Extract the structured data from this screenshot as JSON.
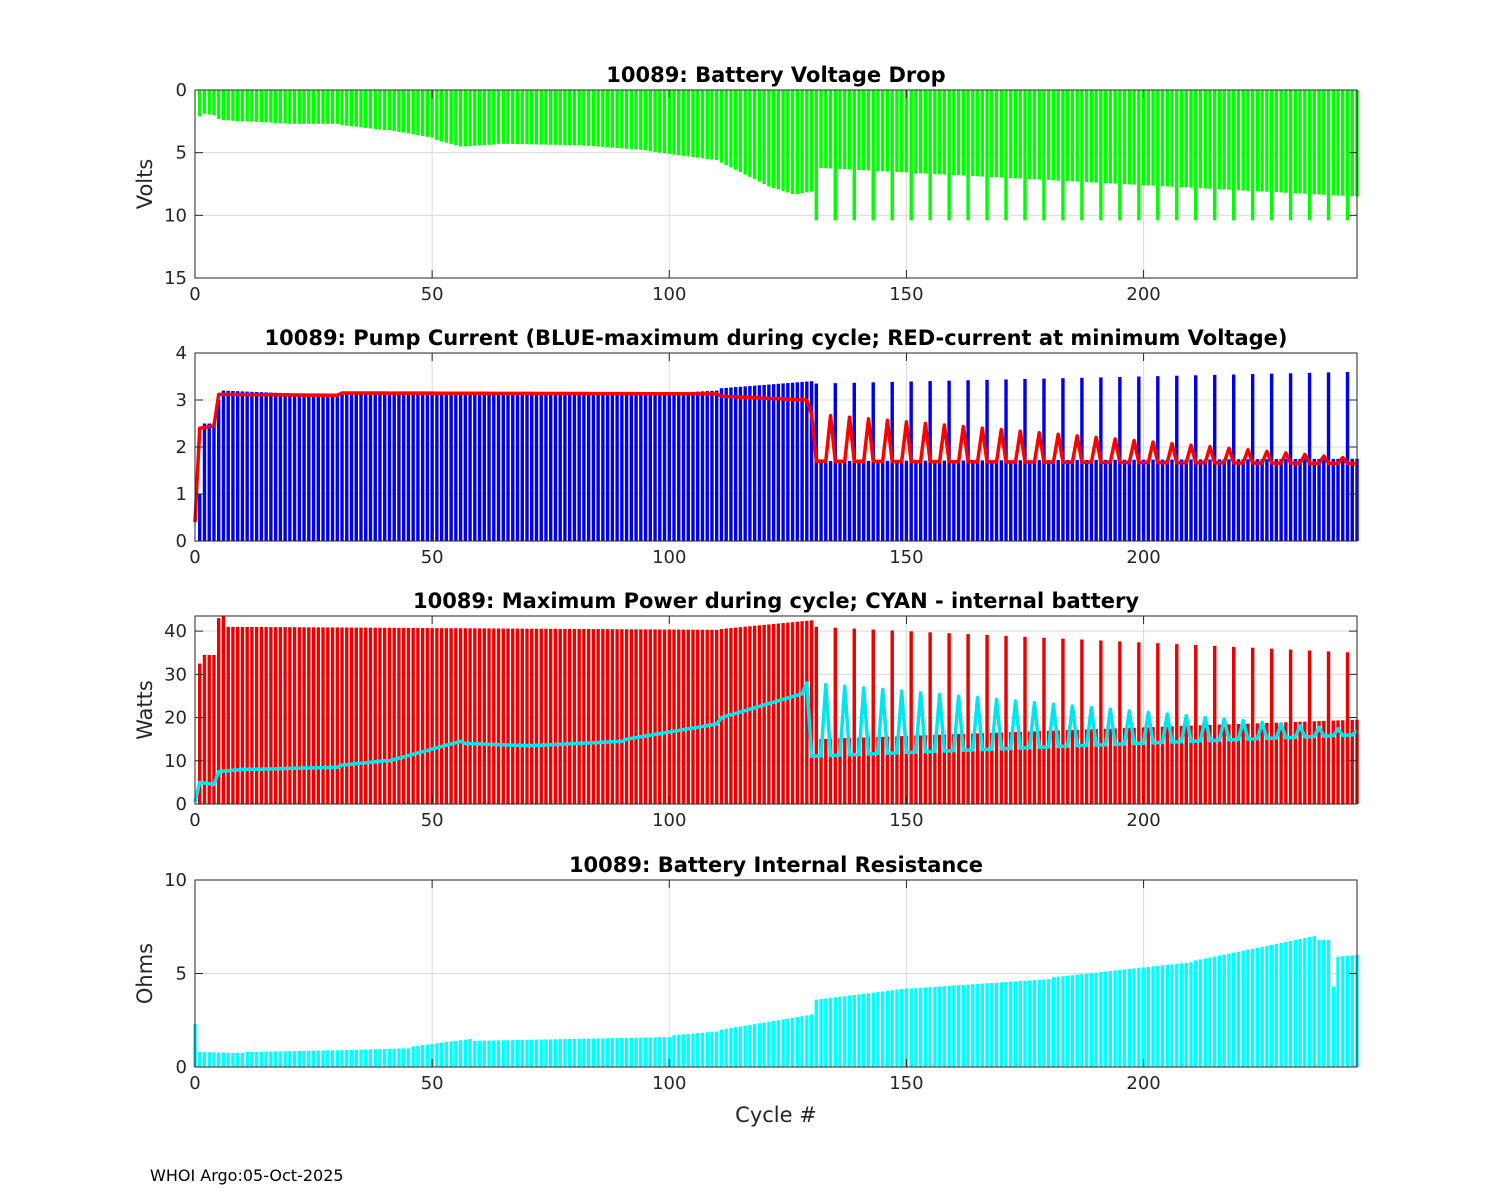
{
  "footer": "WHOI Argo:05-Oct-2025",
  "chart_data": [
    {
      "type": "bar",
      "title": "10089: Battery Voltage Drop",
      "xlabel": "",
      "ylabel": "Volts",
      "xlim": [
        0,
        245
      ],
      "ylim": [
        0,
        15
      ],
      "yreversed": true,
      "xticks": [
        0,
        50,
        100,
        150,
        200
      ],
      "yticks": [
        0,
        5,
        10,
        15
      ],
      "grid": true,
      "colors": {
        "bars": "#00ff00"
      },
      "bar_segments": [
        {
          "from": 1,
          "to": 1,
          "y0": 2.1,
          "y1": 2.1
        },
        {
          "from": 2,
          "to": 4,
          "y0": 1.9,
          "y1": 2.0
        },
        {
          "from": 5,
          "to": 5,
          "y0": 2.3,
          "y1": 2.3
        },
        {
          "from": 6,
          "to": 10,
          "y0": 2.4,
          "y1": 2.5
        },
        {
          "from": 11,
          "to": 20,
          "y0": 2.5,
          "y1": 2.7
        },
        {
          "from": 21,
          "to": 30,
          "y0": 2.7,
          "y1": 2.7
        },
        {
          "from": 31,
          "to": 40,
          "y0": 2.8,
          "y1": 3.2
        },
        {
          "from": 41,
          "to": 50,
          "y0": 3.2,
          "y1": 3.8
        },
        {
          "from": 51,
          "to": 56,
          "y0": 4.0,
          "y1": 4.5
        },
        {
          "from": 57,
          "to": 65,
          "y0": 4.5,
          "y1": 4.3
        },
        {
          "from": 66,
          "to": 80,
          "y0": 4.3,
          "y1": 4.4
        },
        {
          "from": 81,
          "to": 95,
          "y0": 4.4,
          "y1": 4.8
        },
        {
          "from": 96,
          "to": 110,
          "y0": 4.9,
          "y1": 5.6
        },
        {
          "from": 111,
          "to": 120,
          "y0": 5.8,
          "y1": 7.5
        },
        {
          "from": 121,
          "to": 126,
          "y0": 7.7,
          "y1": 8.3
        },
        {
          "from": 127,
          "to": 130,
          "y0": 8.3,
          "y1": 8.1
        },
        {
          "from": 131,
          "to": 245,
          "y0": 6.2,
          "y1": 8.5,
          "spike_every": 4,
          "spike_value": 10.4
        }
      ]
    },
    {
      "type": "bar+line",
      "title": "10089: Pump Current (BLUE-maximum during cycle; RED-current at minimum Voltage)",
      "xlabel": "",
      "ylabel": "",
      "xlim": [
        0,
        245
      ],
      "ylim": [
        0,
        4
      ],
      "xticks": [
        0,
        50,
        100,
        150,
        200
      ],
      "yticks": [
        0,
        1,
        2,
        3,
        4
      ],
      "grid": true,
      "colors": {
        "bars": "#0000ee",
        "line": "#ff0000"
      },
      "series": [
        {
          "name": "maximum during cycle",
          "style": "bars",
          "segments": [
            {
              "from": 1,
              "to": 1,
              "y0": 1.0,
              "y1": 1.0
            },
            {
              "from": 2,
              "to": 4,
              "y0": 2.5,
              "y1": 2.5
            },
            {
              "from": 5,
              "to": 5,
              "y0": 3.0,
              "y1": 3.0
            },
            {
              "from": 6,
              "to": 30,
              "y0": 3.2,
              "y1": 3.1
            },
            {
              "from": 31,
              "to": 100,
              "y0": 3.15,
              "y1": 3.15
            },
            {
              "from": 101,
              "to": 110,
              "y0": 3.15,
              "y1": 3.2
            },
            {
              "from": 111,
              "to": 130,
              "y0": 3.25,
              "y1": 3.4
            },
            {
              "from": 131,
              "to": 245,
              "y0": 1.7,
              "y1": 1.75,
              "spike_every": 4,
              "spike_value": 3.35,
              "spike_end_value": 3.6
            }
          ]
        },
        {
          "name": "current at minimum Voltage",
          "style": "line",
          "segments": [
            {
              "from": 0,
              "to": 0,
              "y0": 0.4,
              "y1": 0.4
            },
            {
              "from": 1,
              "to": 4,
              "y0": 2.4,
              "y1": 2.45
            },
            {
              "from": 5,
              "to": 30,
              "y0": 3.12,
              "y1": 3.1
            },
            {
              "from": 31,
              "to": 110,
              "y0": 3.15,
              "y1": 3.13
            },
            {
              "from": 111,
              "to": 129,
              "y0": 3.08,
              "y1": 3.0
            },
            {
              "from": 130,
              "to": 245,
              "y0": 1.7,
              "y1": 1.65,
              "spike_every": 4,
              "spike_value": 2.7,
              "spike_end_value": 1.75
            }
          ]
        }
      ]
    },
    {
      "type": "bar+line",
      "title": "10089: Maximum Power during cycle; CYAN - internal battery",
      "xlabel": "",
      "ylabel": "Watts",
      "xlim": [
        0,
        245
      ],
      "ylim": [
        0,
        43.5
      ],
      "xticks": [
        0,
        50,
        100,
        150,
        200
      ],
      "yticks": [
        0,
        10,
        20,
        30,
        40
      ],
      "grid": true,
      "colors": {
        "bars": "#ee0000",
        "line": "#00e5ee"
      },
      "series": [
        {
          "name": "Maximum Power",
          "style": "bars",
          "segments": [
            {
              "from": 1,
              "to": 1,
              "y0": 32.5,
              "y1": 32.5
            },
            {
              "from": 2,
              "to": 4,
              "y0": 34.5,
              "y1": 34.5
            },
            {
              "from": 5,
              "to": 6,
              "y0": 43,
              "y1": 43.5
            },
            {
              "from": 7,
              "to": 110,
              "y0": 41,
              "y1": 40.3
            },
            {
              "from": 111,
              "to": 130,
              "y0": 40.5,
              "y1": 42.5
            },
            {
              "from": 131,
              "to": 245,
              "y0": 15,
              "y1": 19.5,
              "spike_every": 4,
              "spike_value": 41,
              "spike_end_value": 35
            }
          ]
        },
        {
          "name": "internal battery",
          "style": "line",
          "segments": [
            {
              "from": 0,
              "to": 0,
              "y0": 0.5,
              "y1": 0.5
            },
            {
              "from": 1,
              "to": 4,
              "y0": 5,
              "y1": 4.5
            },
            {
              "from": 5,
              "to": 10,
              "y0": 7.5,
              "y1": 8
            },
            {
              "from": 11,
              "to": 30,
              "y0": 8,
              "y1": 8.5
            },
            {
              "from": 31,
              "to": 40,
              "y0": 9,
              "y1": 10
            },
            {
              "from": 41,
              "to": 56,
              "y0": 10,
              "y1": 14.5
            },
            {
              "from": 57,
              "to": 70,
              "y0": 14,
              "y1": 13.5
            },
            {
              "from": 71,
              "to": 90,
              "y0": 13.5,
              "y1": 14.5
            },
            {
              "from": 91,
              "to": 110,
              "y0": 15,
              "y1": 18.5
            },
            {
              "from": 111,
              "to": 128,
              "y0": 20,
              "y1": 25.5
            },
            {
              "from": 129,
              "to": 245,
              "y0": 11,
              "y1": 16,
              "spike_every": 4,
              "spike_value": 28,
              "spike_end_value": 17
            }
          ]
        }
      ]
    },
    {
      "type": "bar",
      "title": "10089: Battery Internal Resistance",
      "xlabel": "Cycle #",
      "ylabel": "Ohms",
      "xlim": [
        0,
        245
      ],
      "ylim": [
        0,
        10
      ],
      "xticks": [
        0,
        50,
        100,
        150,
        200
      ],
      "yticks": [
        0,
        5,
        10
      ],
      "grid": true,
      "colors": {
        "bars": "#00ffff"
      },
      "bar_segments": [
        {
          "from": 0,
          "to": 0,
          "y0": 2.3,
          "y1": 2.3
        },
        {
          "from": 1,
          "to": 10,
          "y0": 0.8,
          "y1": 0.75
        },
        {
          "from": 11,
          "to": 30,
          "y0": 0.8,
          "y1": 0.9
        },
        {
          "from": 31,
          "to": 45,
          "y0": 0.9,
          "y1": 1.0
        },
        {
          "from": 46,
          "to": 58,
          "y0": 1.1,
          "y1": 1.5
        },
        {
          "from": 59,
          "to": 100,
          "y0": 1.4,
          "y1": 1.6
        },
        {
          "from": 101,
          "to": 110,
          "y0": 1.7,
          "y1": 1.9
        },
        {
          "from": 111,
          "to": 130,
          "y0": 2.0,
          "y1": 2.8
        },
        {
          "from": 131,
          "to": 150,
          "y0": 3.6,
          "y1": 4.2
        },
        {
          "from": 151,
          "to": 180,
          "y0": 4.2,
          "y1": 4.7
        },
        {
          "from": 181,
          "to": 210,
          "y0": 4.8,
          "y1": 5.6
        },
        {
          "from": 211,
          "to": 236,
          "y0": 5.7,
          "y1": 7.0
        },
        {
          "from": 237,
          "to": 239,
          "y0": 6.8,
          "y1": 6.8
        },
        {
          "from": 240,
          "to": 240,
          "y0": 4.3,
          "y1": 4.3
        },
        {
          "from": 241,
          "to": 245,
          "y0": 5.9,
          "y1": 6.0
        }
      ]
    }
  ]
}
